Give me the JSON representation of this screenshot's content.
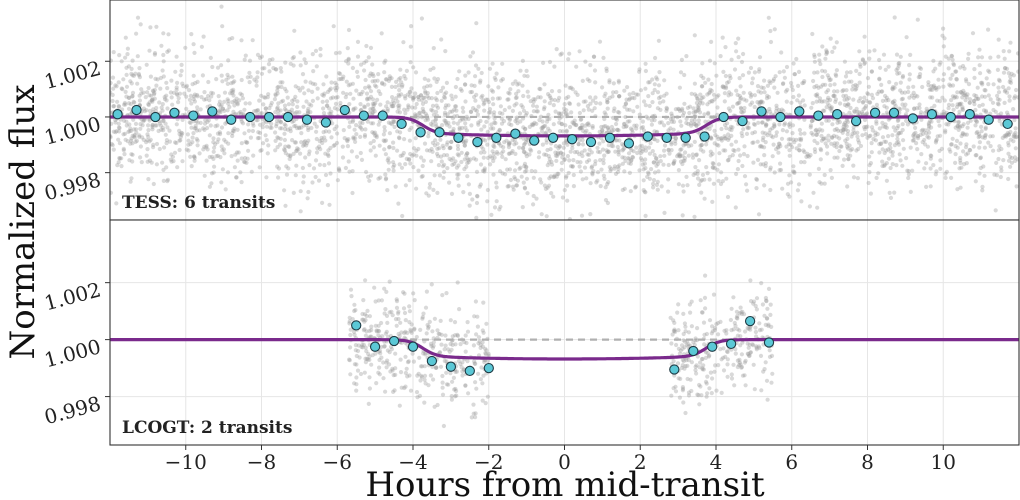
{
  "chart_data": {
    "type": "scatter",
    "xlabel": "Hours from mid-transit",
    "ylabel": "Normalized flux",
    "xlim": [
      -12,
      12
    ],
    "ylim": [
      0.9963,
      1.0042
    ],
    "xticks": [
      -10,
      -8,
      -6,
      -4,
      -2,
      0,
      2,
      4,
      6,
      8,
      10
    ],
    "xtick_labels": [
      "−10",
      "−8",
      "−6",
      "−4",
      "−2",
      "0",
      "2",
      "4",
      "6",
      "8",
      "10"
    ],
    "yticks": [
      0.998,
      1.0,
      1.002
    ],
    "ytick_labels": [
      "0.998",
      "1.000",
      "1.002"
    ],
    "grid": true,
    "colors": {
      "raw": "#9a9a9a",
      "binned_fill": "#5bc8d6",
      "binned_edge": "#1e3a44",
      "model": "#7a2a8c",
      "baseline": "#b0b0b0"
    },
    "model": {
      "transit_depth": 0.00068,
      "ingress_center": 3.75,
      "ingress_width": 0.18,
      "curvature": 6e-05
    },
    "panels": [
      {
        "label": "TESS: 6 transits",
        "raw_coverage": [
          [
            -12,
            12
          ]
        ],
        "raw_scatter": 0.0012,
        "binned": [
          {
            "x": -11.8,
            "y": 1.0001
          },
          {
            "x": -11.3,
            "y": 1.00025
          },
          {
            "x": -10.8,
            "y": 1.0
          },
          {
            "x": -10.3,
            "y": 1.00015
          },
          {
            "x": -9.8,
            "y": 1.00005
          },
          {
            "x": -9.3,
            "y": 1.0002
          },
          {
            "x": -8.8,
            "y": 0.9999
          },
          {
            "x": -8.3,
            "y": 1.0
          },
          {
            "x": -7.8,
            "y": 1.0
          },
          {
            "x": -7.3,
            "y": 1.0
          },
          {
            "x": -6.8,
            "y": 0.9999
          },
          {
            "x": -6.3,
            "y": 0.9998
          },
          {
            "x": -5.8,
            "y": 1.00025
          },
          {
            "x": -5.3,
            "y": 1.00005
          },
          {
            "x": -4.8,
            "y": 1.00005
          },
          {
            "x": -4.3,
            "y": 0.99975
          },
          {
            "x": -3.8,
            "y": 0.99945
          },
          {
            "x": -3.3,
            "y": 0.99945
          },
          {
            "x": -2.8,
            "y": 0.99925
          },
          {
            "x": -2.3,
            "y": 0.9991
          },
          {
            "x": -1.8,
            "y": 0.99925
          },
          {
            "x": -1.3,
            "y": 0.9994
          },
          {
            "x": -0.8,
            "y": 0.99915
          },
          {
            "x": -0.3,
            "y": 0.99925
          },
          {
            "x": 0.2,
            "y": 0.9992
          },
          {
            "x": 0.7,
            "y": 0.9991
          },
          {
            "x": 1.2,
            "y": 0.99925
          },
          {
            "x": 1.7,
            "y": 0.99905
          },
          {
            "x": 2.2,
            "y": 0.9993
          },
          {
            "x": 2.7,
            "y": 0.99925
          },
          {
            "x": 3.2,
            "y": 0.99925
          },
          {
            "x": 3.7,
            "y": 0.9993
          },
          {
            "x": 4.2,
            "y": 1.0
          },
          {
            "x": 4.7,
            "y": 0.99985
          },
          {
            "x": 5.2,
            "y": 1.0002
          },
          {
            "x": 5.7,
            "y": 1.0
          },
          {
            "x": 6.2,
            "y": 1.0002
          },
          {
            "x": 6.7,
            "y": 1.00005
          },
          {
            "x": 7.2,
            "y": 1.0001
          },
          {
            "x": 7.7,
            "y": 0.99985
          },
          {
            "x": 8.2,
            "y": 1.00015
          },
          {
            "x": 8.7,
            "y": 1.00015
          },
          {
            "x": 9.2,
            "y": 0.99995
          },
          {
            "x": 9.7,
            "y": 1.0001
          },
          {
            "x": 10.2,
            "y": 1.0
          },
          {
            "x": 10.7,
            "y": 1.0001
          },
          {
            "x": 11.2,
            "y": 0.9999
          },
          {
            "x": 11.7,
            "y": 0.99975
          }
        ]
      },
      {
        "label": "LCOGT: 2 transits",
        "raw_coverage": [
          [
            -5.7,
            -2.0
          ],
          [
            2.8,
            5.5
          ]
        ],
        "raw_scatter": 0.0009,
        "binned": [
          {
            "x": -5.5,
            "y": 1.0005
          },
          {
            "x": -5.0,
            "y": 0.99975
          },
          {
            "x": -4.5,
            "y": 0.99995
          },
          {
            "x": -4.0,
            "y": 0.99975
          },
          {
            "x": -3.5,
            "y": 0.99925
          },
          {
            "x": -3.0,
            "y": 0.99905
          },
          {
            "x": -2.5,
            "y": 0.9989
          },
          {
            "x": -2.0,
            "y": 0.999
          },
          {
            "x": 2.9,
            "y": 0.99895
          },
          {
            "x": 3.4,
            "y": 0.9996
          },
          {
            "x": 3.9,
            "y": 0.99975
          },
          {
            "x": 4.4,
            "y": 0.99985
          },
          {
            "x": 4.9,
            "y": 1.00065
          },
          {
            "x": 5.4,
            "y": 0.9999
          }
        ]
      }
    ]
  }
}
